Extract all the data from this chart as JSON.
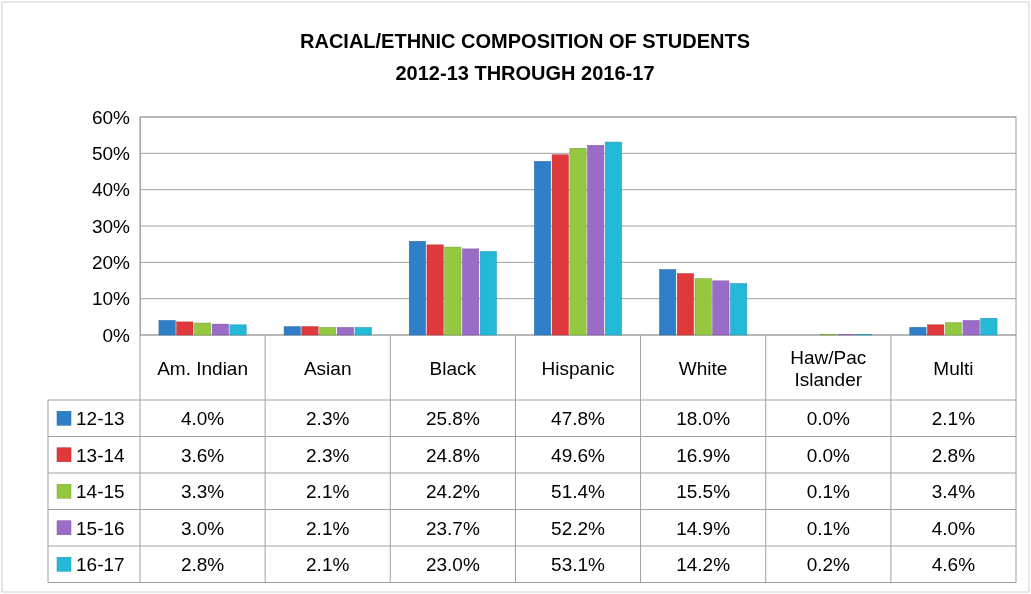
{
  "chart_data": {
    "type": "bar",
    "title": "RACIAL/ETHNIC COMPOSITION OF STUDENTS",
    "subtitle": "2012-13 THROUGH 2016-17",
    "categories": [
      "Am. Indian",
      "Asian",
      "Black",
      "Hispanic",
      "White",
      "Haw/Pac Islander",
      "Multi"
    ],
    "series": [
      {
        "name": "12-13",
        "color": "#2f7fc8",
        "values": [
          4.0,
          2.3,
          25.8,
          47.8,
          18.0,
          0.0,
          2.1
        ],
        "value_labels": [
          "4.0%",
          "2.3%",
          "25.8%",
          "47.8%",
          "18.0%",
          "0.0%",
          "2.1%"
        ]
      },
      {
        "name": "13-14",
        "color": "#e0393b",
        "values": [
          3.6,
          2.3,
          24.8,
          49.6,
          16.9,
          0.0,
          2.8
        ],
        "value_labels": [
          "3.6%",
          "2.3%",
          "24.8%",
          "49.6%",
          "16.9%",
          "0.0%",
          "2.8%"
        ]
      },
      {
        "name": "14-15",
        "color": "#93c840",
        "values": [
          3.3,
          2.1,
          24.2,
          51.4,
          15.5,
          0.1,
          3.4
        ],
        "value_labels": [
          "3.3%",
          "2.1%",
          "24.2%",
          "51.4%",
          "15.5%",
          "0.1%",
          "3.4%"
        ]
      },
      {
        "name": "15-16",
        "color": "#9a6cc8",
        "values": [
          3.0,
          2.1,
          23.7,
          52.2,
          14.9,
          0.1,
          4.0
        ],
        "value_labels": [
          "3.0%",
          "2.1%",
          "23.7%",
          "52.2%",
          "14.9%",
          "0.1%",
          "4.0%"
        ]
      },
      {
        "name": "16-17",
        "color": "#25b9d8",
        "values": [
          2.8,
          2.1,
          23.0,
          53.1,
          14.2,
          0.2,
          4.6
        ],
        "value_labels": [
          "2.8%",
          "2.1%",
          "23.0%",
          "53.1%",
          "14.2%",
          "0.2%",
          "4.6%"
        ]
      }
    ],
    "ylim": [
      0,
      60
    ],
    "yticks": [
      {
        "value": 0,
        "label": "0%"
      },
      {
        "value": 10,
        "label": "10%"
      },
      {
        "value": 20,
        "label": "20%"
      },
      {
        "value": 30,
        "label": "30%"
      },
      {
        "value": 40,
        "label": "40%"
      },
      {
        "value": 50,
        "label": "50%"
      },
      {
        "value": 60,
        "label": "60%"
      }
    ],
    "grid": "y",
    "legend": "bottom left"
  }
}
